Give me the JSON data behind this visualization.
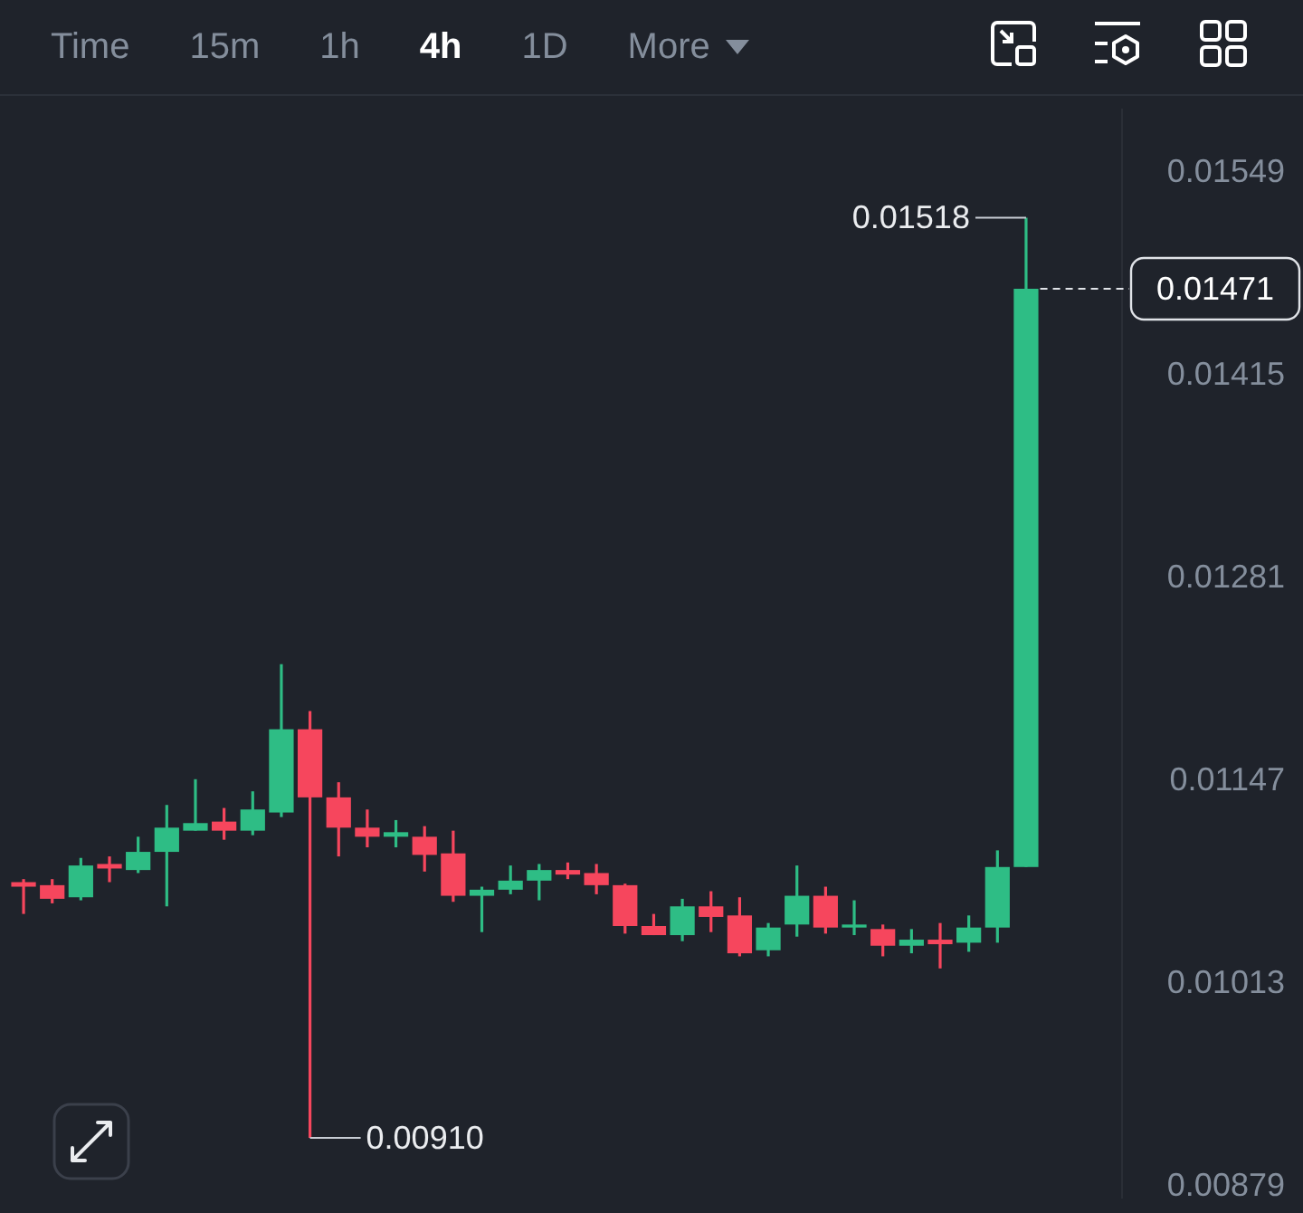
{
  "chart_data": {
    "type": "candlestick",
    "categories": [
      null,
      null,
      null,
      null,
      null,
      null,
      null,
      null,
      null,
      null,
      null,
      null,
      null,
      null,
      null,
      null,
      null,
      null,
      null,
      null,
      null,
      null,
      null,
      null,
      null,
      null,
      null,
      null,
      null,
      null,
      null,
      null,
      null,
      null,
      null,
      null
    ],
    "ohlc": [
      [
        0.01079,
        0.01081,
        0.01058,
        0.01076
      ],
      [
        0.01077,
        0.01081,
        0.01065,
        0.01068
      ],
      [
        0.01069,
        0.01095,
        0.01067,
        0.0109
      ],
      [
        0.01091,
        0.01096,
        0.01079,
        0.01088
      ],
      [
        0.01087,
        0.01109,
        0.01085,
        0.01099
      ],
      [
        0.01099,
        0.0113,
        0.01063,
        0.01115
      ],
      [
        0.01113,
        0.01147,
        0.01113,
        0.01118
      ],
      [
        0.01119,
        0.01128,
        0.01107,
        0.01113
      ],
      [
        0.01113,
        0.01139,
        0.0111,
        0.01127
      ],
      [
        0.01125,
        0.01223,
        0.01122,
        0.0118
      ],
      [
        0.0118,
        0.01192,
        0.0091,
        0.01135
      ],
      [
        0.01135,
        0.01145,
        0.01096,
        0.01115
      ],
      [
        0.01115,
        0.01127,
        0.01102,
        0.01109
      ],
      [
        0.01109,
        0.0112,
        0.01102,
        0.01112
      ],
      [
        0.01109,
        0.01116,
        0.01086,
        0.01097
      ],
      [
        0.01098,
        0.01113,
        0.01066,
        0.0107
      ],
      [
        0.0107,
        0.01076,
        0.01046,
        0.01074
      ],
      [
        0.01074,
        0.0109,
        0.01071,
        0.0108
      ],
      [
        0.0108,
        0.01091,
        0.01067,
        0.01087
      ],
      [
        0.01087,
        0.01092,
        0.01081,
        0.01084
      ],
      [
        0.01085,
        0.01091,
        0.01071,
        0.01077
      ],
      [
        0.01077,
        0.01078,
        0.01045,
        0.0105
      ],
      [
        0.0105,
        0.01058,
        0.01044,
        0.01044
      ],
      [
        0.01044,
        0.01068,
        0.0104,
        0.01063
      ],
      [
        0.01063,
        0.01073,
        0.01046,
        0.01056
      ],
      [
        0.01057,
        0.01069,
        0.0103,
        0.01032
      ],
      [
        0.01034,
        0.01052,
        0.0103,
        0.01049
      ],
      [
        0.01051,
        0.0109,
        0.01043,
        0.0107
      ],
      [
        0.0107,
        0.01076,
        0.01045,
        0.01049
      ],
      [
        0.01049,
        0.01067,
        0.01044,
        0.01051
      ],
      [
        0.01048,
        0.01051,
        0.0103,
        0.01037
      ],
      [
        0.01037,
        0.01048,
        0.01032,
        0.01041
      ],
      [
        0.01041,
        0.01052,
        0.01022,
        0.01038
      ],
      [
        0.01039,
        0.01057,
        0.01033,
        0.01049
      ],
      [
        0.01049,
        0.011,
        0.01039,
        0.01089
      ],
      [
        0.01089,
        0.01518,
        0.01089,
        0.01471
      ]
    ],
    "colors": [
      "#f6465d",
      "#f6465d",
      "#2ebd85",
      "#f6465d",
      "#2ebd85",
      "#2ebd85",
      "#2ebd85",
      "#f6465d",
      "#2ebd85",
      "#2ebd85",
      "#f6465d",
      "#f6465d",
      "#f6465d",
      "#2ebd85",
      "#f6465d",
      "#f6465d",
      "#2ebd85",
      "#2ebd85",
      "#2ebd85",
      "#f6465d",
      "#f6465d",
      "#f6465d",
      "#f6465d",
      "#2ebd85",
      "#f6465d",
      "#f6465d",
      "#2ebd85",
      "#2ebd85",
      "#f6465d",
      "#2ebd85",
      "#f6465d",
      "#2ebd85",
      "#f6465d",
      "#2ebd85",
      "#2ebd85",
      "#2ebd85"
    ],
    "ylim": [
      0.0087,
      0.0159
    ],
    "yticks": [
      0.00879,
      0.01013,
      0.01147,
      0.01281,
      0.01415,
      0.01549
    ],
    "ref_lines": [
      {
        "axis": "y",
        "value": 0.01471,
        "label": "0.01471",
        "line_style": "dashed",
        "color": "#e0e3e8"
      }
    ],
    "annotations": [
      "Time",
      "15m",
      "1h",
      "4h",
      "1D",
      "More",
      "0.01518",
      "0.00910"
    ]
  }
}
